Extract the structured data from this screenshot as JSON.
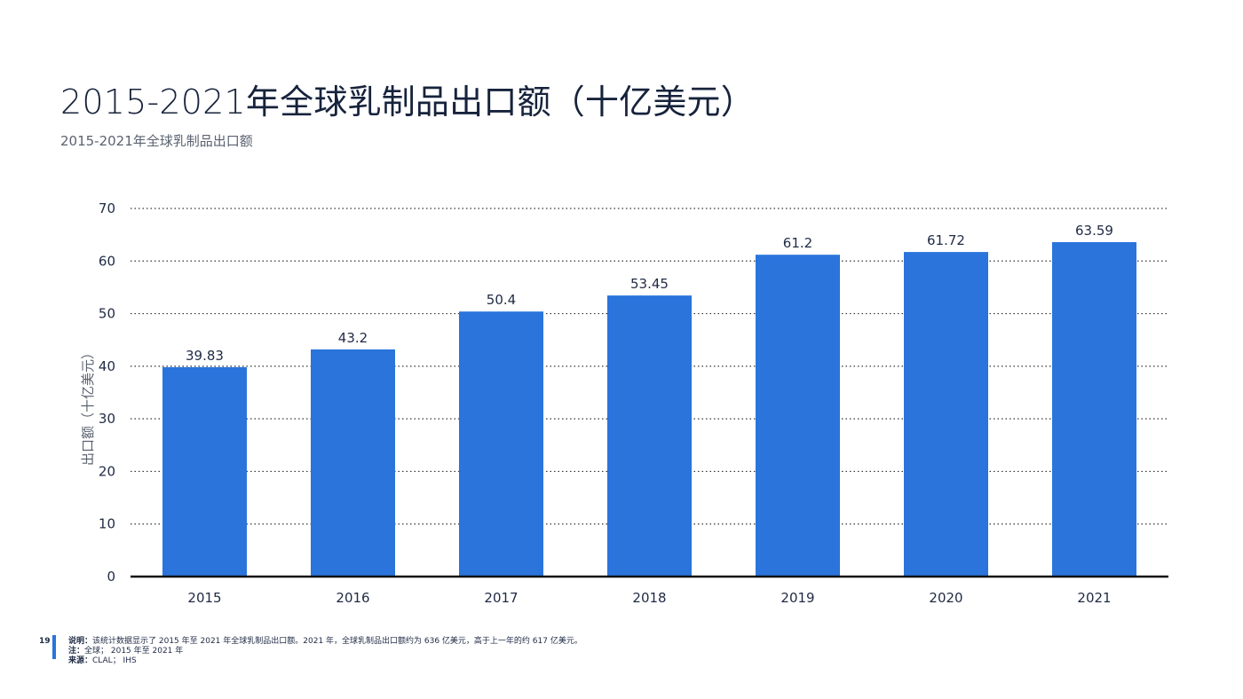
{
  "page": {
    "title": "2015-2021年全球乳制品出口额（十亿美元）",
    "subtitle": "2015-2021年全球乳制品出口额",
    "page_number": "19"
  },
  "footer": {
    "note_label": "说明：",
    "note_text": "该统计数据显示了 2015 年至 2021 年全球乳制品出口额。2021 年，全球乳制品出口额约为 636 亿美元，高于上一年的约 617 亿美元。",
    "remark_label": "注：",
    "remark_text": "全球； 2015 年至 2021 年",
    "source_label": "来源：",
    "source_text": "CLAL； IHS"
  },
  "colors": {
    "bar": "#2a74dc",
    "grid": "#333333",
    "axis": "#111111",
    "accent": "#2a74dc"
  },
  "chart_data": {
    "type": "bar",
    "categories": [
      "2015",
      "2016",
      "2017",
      "2018",
      "2019",
      "2020",
      "2021"
    ],
    "values": [
      39.83,
      43.2,
      50.4,
      53.45,
      61.2,
      61.72,
      63.59
    ],
    "data_labels": [
      "39.83",
      "43.2",
      "50.4",
      "53.45",
      "61.2",
      "61.72",
      "63.59"
    ],
    "ylabel": "出口额（十亿美元）",
    "xlabel": "",
    "ylim": [
      0,
      70
    ],
    "yticks": [
      0,
      10,
      20,
      30,
      40,
      50,
      60,
      70
    ],
    "grid": true,
    "legend": "none"
  }
}
